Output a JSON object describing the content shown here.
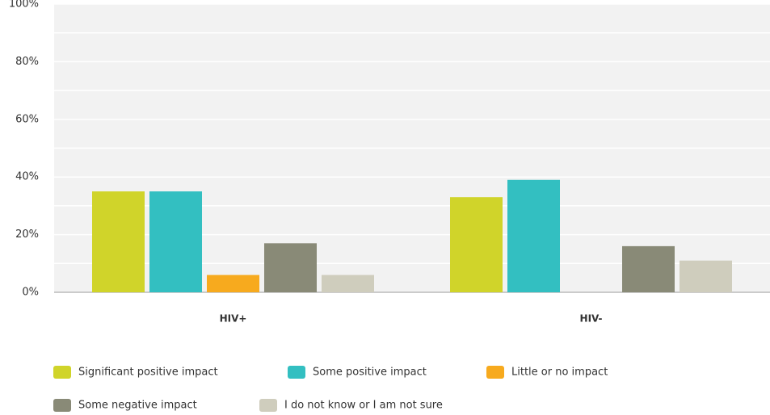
{
  "chart_data": {
    "type": "bar",
    "categories": [
      "HIV+",
      "HIV-"
    ],
    "series": [
      {
        "name": "Significant positive impact",
        "color": "#d0d42a",
        "values": [
          35,
          33
        ]
      },
      {
        "name": "Some positive impact",
        "color": "#33bfc1",
        "values": [
          35,
          39
        ]
      },
      {
        "name": "Little or no impact",
        "color": "#f7aa1e",
        "values": [
          6,
          0
        ]
      },
      {
        "name": "Some negative impact",
        "color": "#898a77",
        "values": [
          17,
          16
        ]
      },
      {
        "name": "I do not know or I am not sure",
        "color": "#cfcdbd",
        "values": [
          6,
          11
        ]
      }
    ],
    "ylim": [
      0,
      100
    ],
    "yticks": [
      {
        "value": 0,
        "label": "0%"
      },
      {
        "value": 20,
        "label": "20%"
      },
      {
        "value": 40,
        "label": "40%"
      },
      {
        "value": 60,
        "label": "60%"
      },
      {
        "value": 80,
        "label": "80%"
      },
      {
        "value": 100,
        "label": "100%"
      }
    ],
    "minor_yticks": [
      10,
      30,
      50,
      70,
      90
    ],
    "grid": true,
    "legend": "bottom"
  }
}
